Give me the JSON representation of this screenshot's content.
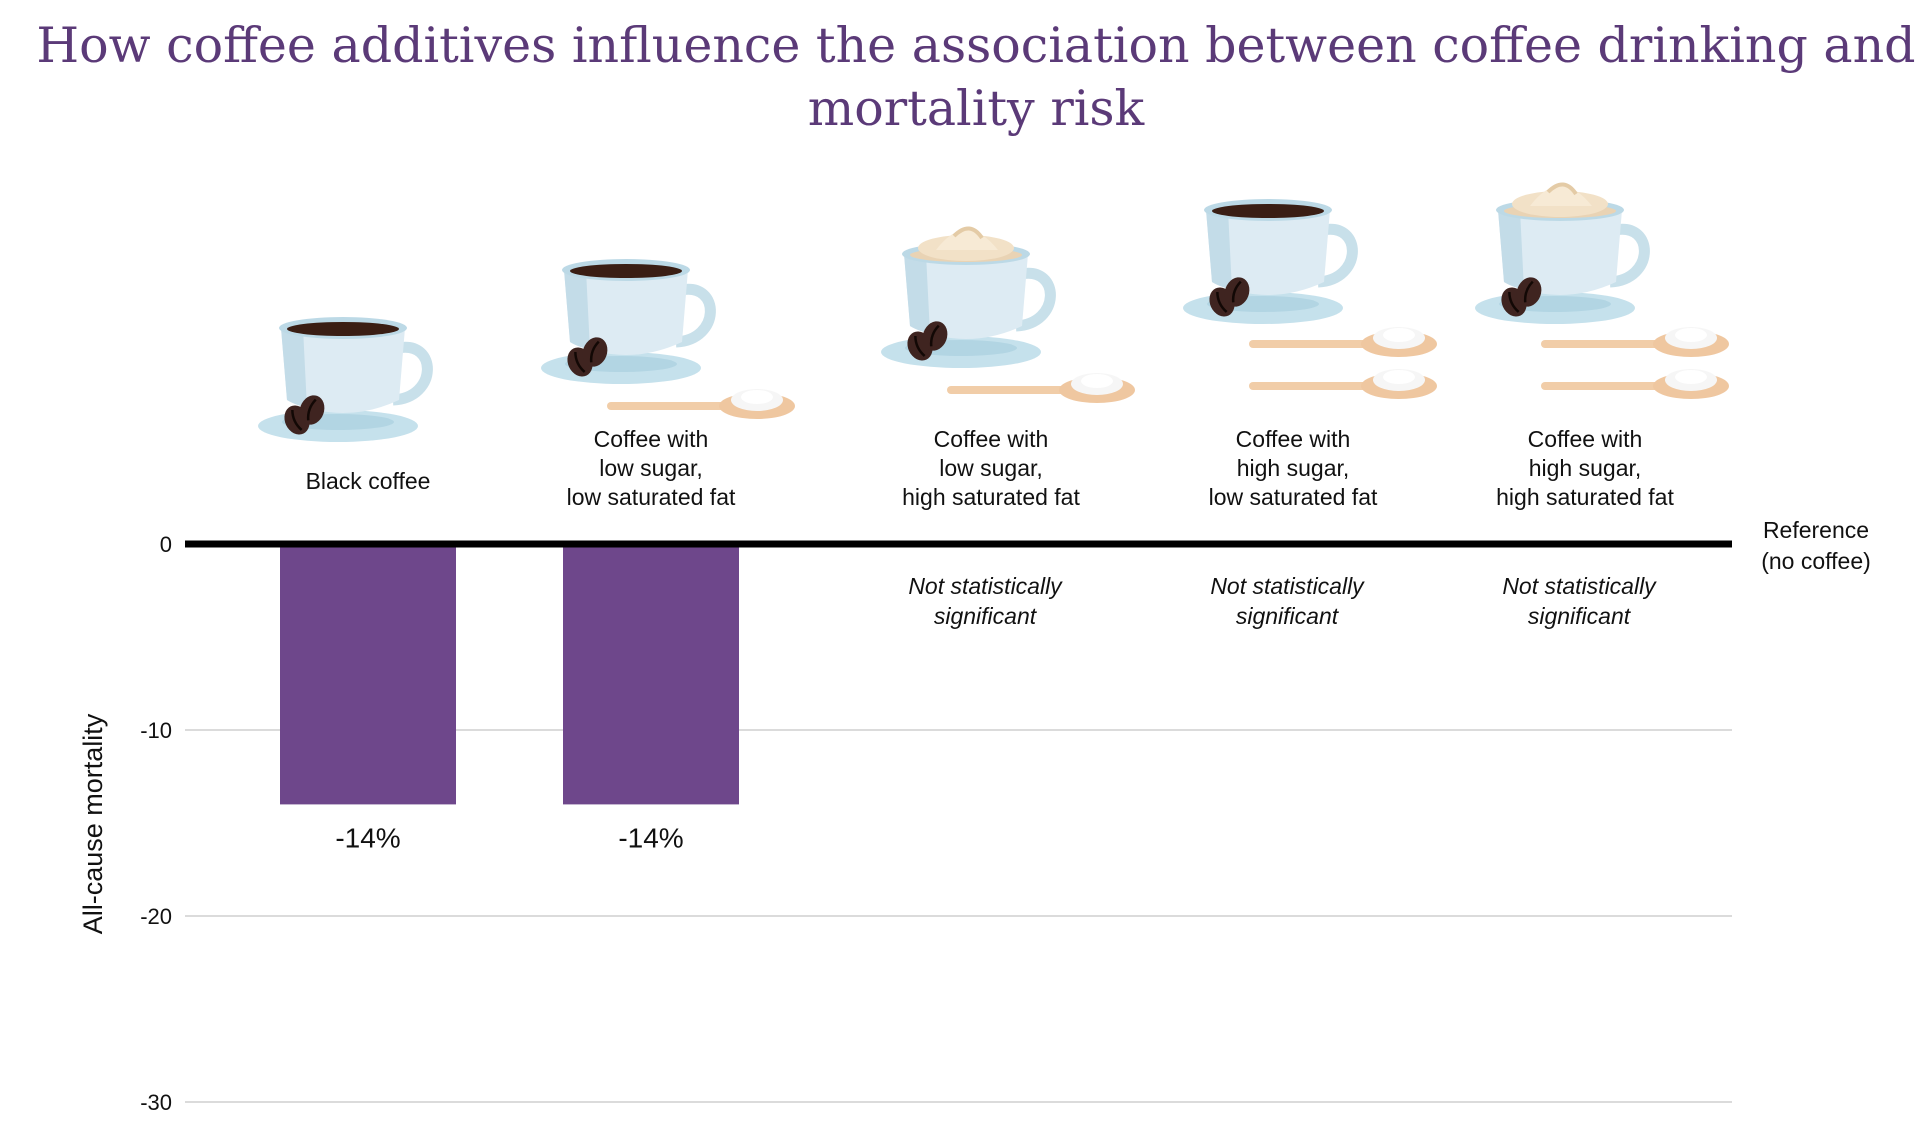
{
  "chart_data": {
    "type": "bar",
    "title_lines": [
      "How coffee additives influence the association between coffee drinking and",
      "mortality risk"
    ],
    "ylabel": "All-cause mortality",
    "ylim": [
      -30,
      0
    ],
    "yticks": [
      0,
      -10,
      -20,
      -30
    ],
    "reference_label": [
      "Reference",
      "(no coffee)"
    ],
    "bar_color": "#6e478b",
    "title_color": "#5b3a78",
    "categories": [
      {
        "label_lines": [
          "Black coffee"
        ],
        "value": -14,
        "value_label": "-14%",
        "significant": true,
        "spoons": 0,
        "cream": false
      },
      {
        "label_lines": [
          "Coffee with",
          "low sugar,",
          "low saturated fat"
        ],
        "value": -14,
        "value_label": "-14%",
        "significant": true,
        "spoons": 1,
        "cream": false
      },
      {
        "label_lines": [
          "Coffee with",
          "low sugar,",
          "high saturated fat"
        ],
        "value": null,
        "significant": false,
        "ns_lines": [
          "Not statistically",
          "significant"
        ],
        "spoons": 1,
        "cream": true
      },
      {
        "label_lines": [
          "Coffee with",
          "high sugar,",
          "low saturated fat"
        ],
        "value": null,
        "significant": false,
        "ns_lines": [
          "Not statistically",
          "significant"
        ],
        "spoons": 2,
        "cream": false
      },
      {
        "label_lines": [
          "Coffee with",
          "high sugar,",
          "high saturated fat"
        ],
        "value": null,
        "significant": false,
        "ns_lines": [
          "Not statistically",
          "significant"
        ],
        "spoons": 2,
        "cream": true
      }
    ]
  }
}
